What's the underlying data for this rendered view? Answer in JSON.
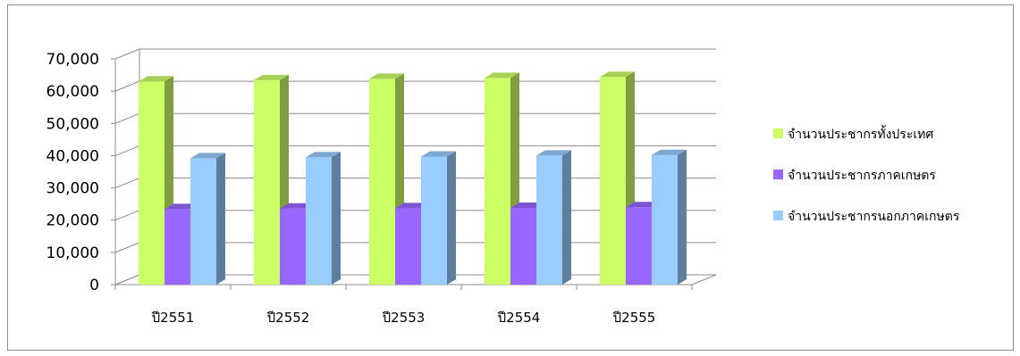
{
  "chart_data": {
    "type": "bar",
    "style": "3d-clustered-column",
    "categories": [
      "ปี2551",
      "ปี2552",
      "ปี2553",
      "ปี2554",
      "ปี2555"
    ],
    "series": [
      {
        "name": "จำนวนประชากรทั้งประเทศ",
        "color": "#ccff66",
        "values": [
          63000,
          63400,
          63800,
          64100,
          64400
        ]
      },
      {
        "name": "จำนวนประชากรภาคเกษตร",
        "color": "#9966ff",
        "values": [
          23400,
          23600,
          23700,
          23800,
          24000
        ]
      },
      {
        "name": "จำนวนประชากรนอกภาคเกษตร",
        "color": "#99ccff",
        "values": [
          39200,
          39500,
          39700,
          40000,
          40200
        ]
      }
    ],
    "yticks": [
      "0",
      "10,000",
      "20,000",
      "30,000",
      "40,000",
      "50,000",
      "60,000",
      "70,000"
    ],
    "ylim": [
      0,
      70000
    ],
    "grid": true,
    "legend": "right"
  }
}
